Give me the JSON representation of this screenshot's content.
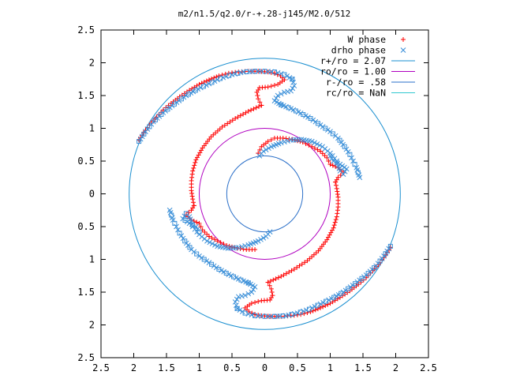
{
  "chart_data": {
    "type": "scatter",
    "title": "m2/n1.5/q2.0/r-+.28-j145/M2.0/512",
    "xlim": [
      -2.5,
      2.5
    ],
    "ylim": [
      -2.5,
      2.5
    ],
    "xticks": [
      -2.5,
      -2,
      -1.5,
      -1,
      -0.5,
      0,
      0.5,
      1,
      1.5,
      2,
      2.5
    ],
    "yticks": [
      -2.5,
      -2,
      -1.5,
      -1,
      -0.5,
      0,
      0.5,
      1,
      1.5,
      2,
      2.5
    ],
    "xtick_labels": [
      "2.5",
      "2",
      "1.5",
      "1",
      "0.5",
      "0",
      "0.5",
      "1",
      "1.5",
      "2",
      "2.5"
    ],
    "ytick_labels": [
      "2.5",
      "2",
      "1.5",
      "1",
      "0.5",
      "0",
      "0.5",
      "1",
      "1.5",
      "2",
      "2.5"
    ],
    "grid": false,
    "legend_position": "top-right",
    "legend": [
      {
        "label": "W phase",
        "marker": "+",
        "color": "#ff0000"
      },
      {
        "label": "drho phase",
        "marker": "x",
        "color": "#3a8fd8"
      },
      {
        "label": "r+/ro = 2.07",
        "line": true,
        "color": "#1a8fd0"
      },
      {
        "label": "ro/ro = 1.00",
        "line": true,
        "color": "#b000c0"
      },
      {
        "label": "r-/ro = .58",
        "line": true,
        "color": "#2a6fc8"
      },
      {
        "label": "rc/ro = NaN",
        "line": true,
        "color": "#30c8d0"
      }
    ],
    "circles": [
      {
        "name": "r+/ro = 2.07",
        "radius": 2.07,
        "color": "#1a8fd0"
      },
      {
        "name": "ro/ro = 1.00",
        "radius": 1.0,
        "color": "#b000c0"
      },
      {
        "name": "r-/ro = .58",
        "radius": 0.58,
        "color": "#2a6fc8"
      }
    ],
    "series": [
      {
        "name": "W phase",
        "marker": "+",
        "color": "#ff0000",
        "segments": [
          {
            "label": "outer arm upper-left",
            "points": [
              [
                -1.92,
                0.82
              ],
              [
                -1.85,
                0.93
              ],
              [
                -1.76,
                1.05
              ],
              [
                -1.65,
                1.17
              ],
              [
                -1.55,
                1.28
              ],
              [
                -1.43,
                1.38
              ],
              [
                -1.3,
                1.48
              ],
              [
                -1.15,
                1.58
              ],
              [
                -1.0,
                1.67
              ],
              [
                -0.85,
                1.74
              ],
              [
                -0.7,
                1.8
              ],
              [
                -0.55,
                1.84
              ],
              [
                -0.4,
                1.86
              ],
              [
                -0.25,
                1.87
              ],
              [
                -0.1,
                1.87
              ],
              [
                0.05,
                1.86
              ],
              [
                0.15,
                1.84
              ]
            ]
          },
          {
            "label": "kink upper",
            "points": [
              [
                0.15,
                1.84
              ],
              [
                0.24,
                1.8
              ],
              [
                0.3,
                1.74
              ],
              [
                0.2,
                1.67
              ],
              [
                0.05,
                1.63
              ],
              [
                -0.08,
                1.62
              ],
              [
                -0.12,
                1.55
              ],
              [
                -0.1,
                1.45
              ],
              [
                -0.05,
                1.35
              ]
            ]
          },
          {
            "label": "inner arm left",
            "points": [
              [
                -0.05,
                1.35
              ],
              [
                -0.25,
                1.26
              ],
              [
                -0.45,
                1.15
              ],
              [
                -0.65,
                1.02
              ],
              [
                -0.82,
                0.87
              ],
              [
                -0.95,
                0.7
              ],
              [
                -1.05,
                0.52
              ],
              [
                -1.1,
                0.35
              ],
              [
                -1.12,
                0.2
              ],
              [
                -1.12,
                0.05
              ],
              [
                -1.1,
                -0.08
              ],
              [
                -1.08,
                -0.18
              ]
            ]
          },
          {
            "label": "kink left",
            "points": [
              [
                -1.08,
                -0.18
              ],
              [
                -1.12,
                -0.25
              ],
              [
                -1.2,
                -0.32
              ],
              [
                -1.12,
                -0.4
              ],
              [
                -1.0,
                -0.45
              ],
              [
                -0.95,
                -0.55
              ],
              [
                -0.85,
                -0.65
              ]
            ]
          },
          {
            "label": "inner arm lower",
            "points": [
              [
                -0.85,
                -0.65
              ],
              [
                -0.72,
                -0.72
              ],
              [
                -0.58,
                -0.79
              ],
              [
                -0.42,
                -0.83
              ],
              [
                -0.28,
                -0.85
              ],
              [
                -0.15,
                -0.85
              ]
            ]
          },
          {
            "label": "outer arm lower-right",
            "points": [
              [
                1.92,
                -0.82
              ],
              [
                1.85,
                -0.93
              ],
              [
                1.76,
                -1.05
              ],
              [
                1.65,
                -1.17
              ],
              [
                1.55,
                -1.28
              ],
              [
                1.43,
                -1.38
              ],
              [
                1.3,
                -1.48
              ],
              [
                1.15,
                -1.58
              ],
              [
                1.0,
                -1.67
              ],
              [
                0.85,
                -1.74
              ],
              [
                0.7,
                -1.8
              ],
              [
                0.55,
                -1.84
              ],
              [
                0.4,
                -1.86
              ],
              [
                0.25,
                -1.87
              ],
              [
                0.1,
                -1.87
              ],
              [
                -0.05,
                -1.86
              ],
              [
                -0.15,
                -1.84
              ]
            ]
          },
          {
            "label": "kink lower",
            "points": [
              [
                -0.15,
                -1.84
              ],
              [
                -0.24,
                -1.8
              ],
              [
                -0.3,
                -1.74
              ],
              [
                -0.2,
                -1.67
              ],
              [
                -0.05,
                -1.63
              ],
              [
                0.08,
                -1.62
              ],
              [
                0.12,
                -1.55
              ],
              [
                0.1,
                -1.45
              ],
              [
                0.05,
                -1.35
              ]
            ]
          },
          {
            "label": "inner arm right",
            "points": [
              [
                0.05,
                -1.35
              ],
              [
                0.25,
                -1.26
              ],
              [
                0.45,
                -1.15
              ],
              [
                0.65,
                -1.02
              ],
              [
                0.82,
                -0.87
              ],
              [
                0.95,
                -0.7
              ],
              [
                1.05,
                -0.52
              ],
              [
                1.1,
                -0.35
              ],
              [
                1.12,
                -0.2
              ],
              [
                1.12,
                -0.05
              ],
              [
                1.1,
                0.08
              ],
              [
                1.08,
                0.18
              ]
            ]
          },
          {
            "label": "kink right",
            "points": [
              [
                1.08,
                0.18
              ],
              [
                1.12,
                0.25
              ],
              [
                1.2,
                0.32
              ],
              [
                1.12,
                0.4
              ],
              [
                1.0,
                0.45
              ],
              [
                0.95,
                0.55
              ],
              [
                0.85,
                0.65
              ]
            ]
          },
          {
            "label": "inner arm upper",
            "points": [
              [
                0.85,
                0.65
              ],
              [
                0.72,
                0.72
              ],
              [
                0.58,
                0.79
              ],
              [
                0.42,
                0.83
              ],
              [
                0.28,
                0.85
              ],
              [
                0.15,
                0.85
              ],
              [
                0.05,
                0.8
              ],
              [
                -0.05,
                0.72
              ],
              [
                -0.1,
                0.62
              ]
            ]
          }
        ]
      },
      {
        "name": "drho phase",
        "marker": "x",
        "color": "#3a8fd8",
        "segments": [
          {
            "label": "outer arm upper-left",
            "points": [
              [
                -1.92,
                0.8
              ],
              [
                -1.82,
                0.95
              ],
              [
                -1.7,
                1.1
              ],
              [
                -1.55,
                1.24
              ],
              [
                -1.38,
                1.37
              ],
              [
                -1.2,
                1.5
              ],
              [
                -1.02,
                1.6
              ],
              [
                -0.85,
                1.68
              ],
              [
                -0.68,
                1.76
              ],
              [
                -0.5,
                1.82
              ],
              [
                -0.32,
                1.86
              ],
              [
                -0.15,
                1.87
              ],
              [
                0.0,
                1.87
              ],
              [
                0.15,
                1.86
              ],
              [
                0.3,
                1.82
              ],
              [
                0.42,
                1.75
              ]
            ]
          },
          {
            "label": "kink upper",
            "points": [
              [
                0.42,
                1.75
              ],
              [
                0.45,
                1.65
              ],
              [
                0.4,
                1.57
              ],
              [
                0.3,
                1.55
              ],
              [
                0.2,
                1.5
              ],
              [
                0.15,
                1.42
              ],
              [
                0.25,
                1.36
              ]
            ]
          },
          {
            "label": "arm upper-right",
            "points": [
              [
                0.25,
                1.36
              ],
              [
                0.4,
                1.3
              ],
              [
                0.55,
                1.23
              ],
              [
                0.7,
                1.15
              ],
              [
                0.85,
                1.05
              ],
              [
                1.0,
                0.95
              ],
              [
                1.12,
                0.85
              ],
              [
                1.22,
                0.72
              ],
              [
                1.3,
                0.6
              ],
              [
                1.35,
                0.5
              ],
              [
                1.4,
                0.4
              ],
              [
                1.45,
                0.25
              ]
            ]
          },
          {
            "label": "inner arc",
            "points": [
              [
                1.15,
                0.35
              ],
              [
                1.1,
                0.5
              ],
              [
                1.0,
                0.62
              ],
              [
                0.88,
                0.72
              ],
              [
                0.72,
                0.8
              ],
              [
                0.56,
                0.83
              ],
              [
                0.4,
                0.82
              ],
              [
                0.25,
                0.78
              ],
              [
                0.1,
                0.72
              ],
              [
                -0.02,
                0.65
              ],
              [
                -0.08,
                0.58
              ]
            ]
          },
          {
            "label": "outer arm lower-right",
            "points": [
              [
                1.92,
                -0.8
              ],
              [
                1.82,
                -0.95
              ],
              [
                1.7,
                -1.1
              ],
              [
                1.55,
                -1.24
              ],
              [
                1.38,
                -1.37
              ],
              [
                1.2,
                -1.5
              ],
              [
                1.02,
                -1.6
              ],
              [
                0.85,
                -1.68
              ],
              [
                0.68,
                -1.76
              ],
              [
                0.5,
                -1.82
              ],
              [
                0.32,
                -1.86
              ],
              [
                0.15,
                -1.87
              ],
              [
                0.0,
                -1.87
              ],
              [
                -0.15,
                -1.86
              ],
              [
                -0.3,
                -1.82
              ],
              [
                -0.42,
                -1.75
              ]
            ]
          },
          {
            "label": "kink lower",
            "points": [
              [
                -0.42,
                -1.75
              ],
              [
                -0.45,
                -1.65
              ],
              [
                -0.4,
                -1.57
              ],
              [
                -0.3,
                -1.55
              ],
              [
                -0.2,
                -1.5
              ],
              [
                -0.15,
                -1.42
              ],
              [
                -0.25,
                -1.36
              ]
            ]
          },
          {
            "label": "arm lower-left",
            "points": [
              [
                -0.25,
                -1.36
              ],
              [
                -0.4,
                -1.3
              ],
              [
                -0.55,
                -1.23
              ],
              [
                -0.7,
                -1.15
              ],
              [
                -0.85,
                -1.05
              ],
              [
                -1.0,
                -0.95
              ],
              [
                -1.12,
                -0.85
              ],
              [
                -1.22,
                -0.72
              ],
              [
                -1.3,
                -0.6
              ],
              [
                -1.35,
                -0.5
              ],
              [
                -1.4,
                -0.4
              ],
              [
                -1.45,
                -0.25
              ]
            ]
          },
          {
            "label": "inner arc lower",
            "points": [
              [
                -1.15,
                -0.35
              ],
              [
                -1.1,
                -0.5
              ],
              [
                -1.0,
                -0.62
              ],
              [
                -0.88,
                -0.72
              ],
              [
                -0.72,
                -0.8
              ],
              [
                -0.56,
                -0.83
              ],
              [
                -0.4,
                -0.82
              ],
              [
                -0.25,
                -0.78
              ],
              [
                -0.1,
                -0.72
              ],
              [
                0.02,
                -0.65
              ],
              [
                0.08,
                -0.58
              ]
            ]
          },
          {
            "label": "kink left",
            "points": [
              [
                -1.2,
                -0.3
              ],
              [
                -1.25,
                -0.38
              ],
              [
                -1.15,
                -0.45
              ],
              [
                -1.05,
                -0.5
              ],
              [
                -1.0,
                -0.58
              ]
            ]
          },
          {
            "label": "kink right",
            "points": [
              [
                1.2,
                0.3
              ],
              [
                1.25,
                0.38
              ],
              [
                1.15,
                0.45
              ],
              [
                1.05,
                0.5
              ],
              [
                1.0,
                0.58
              ]
            ]
          }
        ]
      }
    ]
  }
}
